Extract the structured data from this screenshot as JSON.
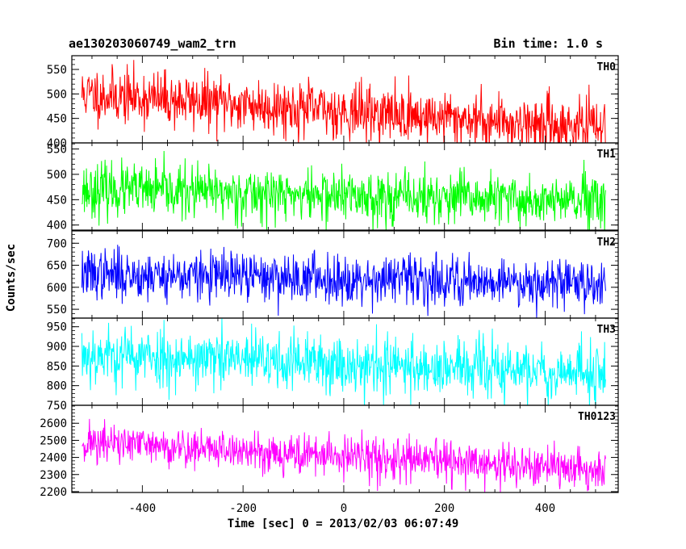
{
  "chart_data": {
    "type": "line",
    "title": "ae130203060749_wam2_trn",
    "bin_time_label": "Bin time: 1.0 s",
    "xlabel": "Time [sec] 0 = 2013/02/03 06:07:49",
    "ylabel": "Counts/sec",
    "xlim": [
      -540,
      545
    ],
    "xticks": [
      -400,
      -200,
      0,
      200,
      400
    ],
    "panels": [
      {
        "name": "TH0",
        "color": "#ff0000",
        "ylim": [
          400,
          578
        ],
        "yticks": [
          400,
          450,
          500,
          550
        ],
        "x_range": [
          -520,
          520
        ],
        "trend_start": 500,
        "trend_end": 430,
        "noise": 28,
        "seed": 11
      },
      {
        "name": "TH1",
        "color": "#00ff00",
        "ylim": [
          390,
          562
        ],
        "yticks": [
          400,
          450,
          500,
          550
        ],
        "x_range": [
          -520,
          520
        ],
        "trend_start": 470,
        "trend_end": 445,
        "noise": 26,
        "seed": 23
      },
      {
        "name": "TH2",
        "color": "#0000ff",
        "ylim": [
          530,
          728
        ],
        "yticks": [
          550,
          600,
          650,
          700
        ],
        "x_range": [
          -520,
          520
        ],
        "trend_start": 630,
        "trend_end": 610,
        "noise": 28,
        "seed": 37
      },
      {
        "name": "TH3",
        "color": "#00ffff",
        "ylim": [
          750,
          972
        ],
        "yticks": [
          750,
          800,
          850,
          900,
          950
        ],
        "x_range": [
          -520,
          520
        ],
        "trend_start": 880,
        "trend_end": 830,
        "noise": 38,
        "seed": 53
      },
      {
        "name": "TH0123",
        "color": "#ff00ff",
        "ylim": [
          2195,
          2705
        ],
        "yticks": [
          2200,
          2300,
          2400,
          2500,
          2600
        ],
        "x_range": [
          -520,
          520
        ],
        "trend_start": 2490,
        "trend_end": 2320,
        "noise": 60,
        "seed": 71
      }
    ]
  }
}
